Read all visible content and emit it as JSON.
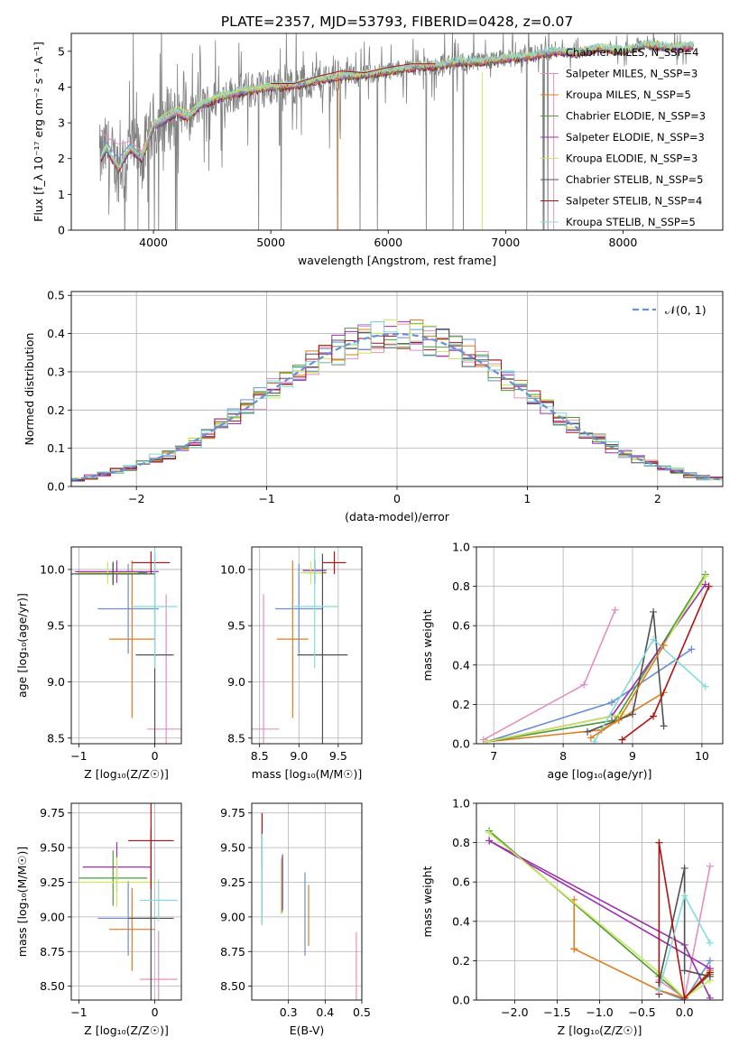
{
  "figure": {
    "title": "PLATE=2357, MJD=53793, FIBERID=0428, z=0.07"
  },
  "colors": {
    "c0": "#6a8fd6",
    "c1": "#e58fbf",
    "c2": "#e07b1e",
    "c3": "#4e9a3e",
    "c4": "#9b2fae",
    "c5": "#c9e85a",
    "c6": "#505050",
    "c7": "#b21111",
    "c8": "#82dcdc",
    "data": "#808080"
  },
  "chart_data": [
    {
      "id": "spectrum",
      "type": "line",
      "xlabel": "wavelength [Angstrom, rest frame]",
      "ylabel": "Flux [f_λ 10⁻¹⁷ erg cm⁻² s⁻¹ A⁻¹]",
      "xlim": [
        3300,
        8850
      ],
      "ylim": [
        0,
        5.5
      ],
      "xticks": [
        4000,
        5000,
        6000,
        7000,
        8000
      ],
      "yticks": [
        0,
        1,
        2,
        3,
        4,
        5
      ],
      "grid": false,
      "legend_position": "top-right",
      "legend": [
        {
          "label": "Chabrier MILES, N_SSP=4",
          "color": "c0"
        },
        {
          "label": "Salpeter MILES, N_SSP=3",
          "color": "c1"
        },
        {
          "label": "Kroupa MILES, N_SSP=5",
          "color": "c2"
        },
        {
          "label": "Chabrier ELODIE, N_SSP=3",
          "color": "c3"
        },
        {
          "label": "Salpeter ELODIE, N_SSP=3",
          "color": "c4"
        },
        {
          "label": "Kroupa ELODIE, N_SSP=3",
          "color": "c5"
        },
        {
          "label": "Chabrier STELIB, N_SSP=5",
          "color": "c6"
        },
        {
          "label": "Salpeter STELIB, N_SSP=4",
          "color": "c7"
        },
        {
          "label": "Kroupa STELIB, N_SSP=5",
          "color": "c8"
        }
      ],
      "model_continuum": {
        "x": [
          3550,
          3600,
          3700,
          3800,
          3900,
          4000,
          4100,
          4200,
          4300,
          4400,
          4600,
          4800,
          5000,
          5200,
          5400,
          5600,
          5800,
          6000,
          6200,
          6400,
          6600,
          6800,
          7000,
          7200,
          7400,
          7600,
          7800,
          8000,
          8200,
          8400,
          8600
        ],
        "y": [
          2.0,
          2.3,
          1.7,
          2.3,
          2.0,
          2.9,
          3.1,
          3.3,
          3.15,
          3.5,
          3.75,
          3.9,
          4.0,
          4.05,
          4.2,
          4.3,
          4.35,
          4.45,
          4.55,
          4.6,
          4.7,
          4.7,
          4.8,
          4.85,
          5.0,
          4.95,
          5.1,
          5.0,
          5.2,
          5.1,
          5.15
        ]
      },
      "model_variants": [
        {
          "color": "c0",
          "x": [
            3550,
            3600,
            3700,
            3800,
            3900,
            4000,
            4100,
            4200,
            4300
          ],
          "y": [
            2.5,
            2.45,
            2.0,
            2.4,
            2.1,
            2.9,
            3.05,
            3.3,
            3.1
          ]
        },
        {
          "color": "c1",
          "x": [
            3550,
            3600,
            3700,
            3800,
            3900,
            4000,
            4100,
            4200,
            4300
          ],
          "y": [
            2.8,
            2.6,
            2.4,
            2.5,
            2.2,
            2.95,
            3.1,
            3.3,
            3.1
          ]
        },
        {
          "color": "c5",
          "x": [
            3900,
            4000,
            4100,
            4200,
            4300,
            4400,
            4600,
            4800,
            5000
          ],
          "y": [
            2.1,
            3.0,
            3.25,
            3.45,
            3.3,
            3.6,
            3.8,
            3.95,
            4.05
          ]
        },
        {
          "color": "c7",
          "x": [
            5000,
            5200,
            5400,
            5600,
            5800,
            6000,
            6200,
            6400
          ],
          "y": [
            4.1,
            4.1,
            4.3,
            4.45,
            4.4,
            4.55,
            4.65,
            4.65
          ]
        }
      ]
    },
    {
      "id": "residuals",
      "type": "step",
      "xlabel": "(data-model)/error",
      "ylabel": "Normed distribution",
      "xlim": [
        -2.5,
        2.5
      ],
      "ylim": [
        0,
        0.51
      ],
      "xticks": [
        -2,
        -1,
        0,
        1,
        2
      ],
      "yticks": [
        0.0,
        0.1,
        0.2,
        0.3,
        0.4,
        0.5
      ],
      "grid": true,
      "legend_position": "top-right",
      "reference": {
        "label": "𝒩(0, 1)",
        "color": "c0",
        "mu": 0,
        "sigma": 1
      },
      "bin_edges_start": -2.5,
      "bin_width": 0.1,
      "bin_count": 50
    },
    {
      "id": "age-vs-Z",
      "type": "errorbar",
      "xlabel": "Z [log₁₀(Z/Z☉)]",
      "ylabel": "age  [log₁₀(age/yr)]",
      "xlim": [
        -1.1,
        0.35
      ],
      "ylim": [
        8.45,
        10.2
      ],
      "xticks": [
        -1,
        0
      ],
      "yticks": [
        8.5,
        9.0,
        9.5,
        10.0
      ],
      "grid": true,
      "points": [
        {
          "color": "c0",
          "x": -0.35,
          "xerr": 0.4,
          "y": 9.65,
          "yerr": 0.4
        },
        {
          "color": "c1",
          "x": 0.15,
          "xerr": 0.25,
          "y": 8.58,
          "yerr": 1.2
        },
        {
          "color": "c2",
          "x": -0.3,
          "xerr": 0.3,
          "y": 9.38,
          "yerr": 0.7
        },
        {
          "color": "c3",
          "x": -0.55,
          "xerr": 0.45,
          "y": 9.97,
          "yerr": 0.1
        },
        {
          "color": "c4",
          "x": -0.5,
          "xerr": 0.55,
          "y": 9.98,
          "yerr": 0.1
        },
        {
          "color": "c5",
          "x": -0.62,
          "xerr": 0.4,
          "y": 9.97,
          "yerr": 0.1
        },
        {
          "color": "c6",
          "x": 0.0,
          "xerr": 0.25,
          "y": 9.24,
          "yerr": 0.9
        },
        {
          "color": "c7",
          "x": -0.05,
          "xerr": 0.25,
          "y": 10.06,
          "yerr": 0.1
        },
        {
          "color": "c8",
          "x": 0.0,
          "xerr": 0.3,
          "y": 9.67,
          "yerr": 0.55
        },
        {
          "color": "c6",
          "x": -0.55,
          "xerr": 0.55,
          "y": 9.96,
          "yerr": 0.1
        }
      ]
    },
    {
      "id": "age-vs-mass",
      "type": "errorbar",
      "xlabel": "mass [log₁₀(M/M☉)]",
      "ylabel": "",
      "xlim": [
        8.4,
        9.8
      ],
      "ylim": [
        8.45,
        10.2
      ],
      "xticks": [
        8.5,
        9.0,
        9.5
      ],
      "yticks": [
        8.5,
        9.0,
        9.5,
        10.0
      ],
      "grid": true,
      "points": [
        {
          "color": "c0",
          "x": 9.0,
          "xerr": 0.3,
          "y": 9.65,
          "yerr": 0.4
        },
        {
          "color": "c1",
          "x": 8.55,
          "xerr": 0.2,
          "y": 8.58,
          "yerr": 1.2
        },
        {
          "color": "c2",
          "x": 8.92,
          "xerr": 0.2,
          "y": 9.38,
          "yerr": 0.7
        },
        {
          "color": "c3",
          "x": 9.2,
          "xerr": 0.15,
          "y": 9.97,
          "yerr": 0.1
        },
        {
          "color": "c4",
          "x": 9.2,
          "xerr": 0.15,
          "y": 9.99,
          "yerr": 0.1
        },
        {
          "color": "c5",
          "x": 9.15,
          "xerr": 0.15,
          "y": 9.97,
          "yerr": 0.1
        },
        {
          "color": "c6",
          "x": 9.3,
          "xerr": 0.32,
          "y": 9.24,
          "yerr": 0.9
        },
        {
          "color": "c7",
          "x": 9.45,
          "xerr": 0.15,
          "y": 10.06,
          "yerr": 0.1
        },
        {
          "color": "c8",
          "x": 9.2,
          "xerr": 0.3,
          "y": 9.67,
          "yerr": 0.55
        }
      ]
    },
    {
      "id": "weight-vs-age",
      "type": "line",
      "xlabel": "age  [log₁₀(age/yr)]",
      "ylabel": "mass weight",
      "xlim": [
        6.75,
        10.3
      ],
      "ylim": [
        0,
        1.0
      ],
      "xticks": [
        7,
        8,
        9,
        10
      ],
      "yticks": [
        0.0,
        0.2,
        0.4,
        0.6,
        0.8,
        1.0
      ],
      "grid": true,
      "series": [
        {
          "color": "c0",
          "x": [
            6.9,
            8.7,
            9.85
          ],
          "y": [
            0.01,
            0.21,
            0.48
          ]
        },
        {
          "color": "c1",
          "x": [
            6.85,
            8.3,
            8.75
          ],
          "y": [
            0.02,
            0.3,
            0.68
          ]
        },
        {
          "color": "c2",
          "x": [
            6.9,
            8.55,
            8.8,
            9.45
          ],
          "y": [
            0.01,
            0.07,
            0.12,
            0.26
          ]
        },
        {
          "color": "c3",
          "x": [
            6.9,
            8.75,
            10.05
          ],
          "y": [
            0.01,
            0.12,
            0.86
          ]
        },
        {
          "color": "c4",
          "x": [
            6.9,
            8.7,
            10.05
          ],
          "y": [
            0.01,
            0.14,
            0.81
          ]
        },
        {
          "color": "c5",
          "x": [
            6.9,
            8.85,
            10.05
          ],
          "y": [
            0.01,
            0.15,
            0.85
          ]
        },
        {
          "color": "c6",
          "x": [
            8.35,
            9.0,
            9.3,
            9.45
          ],
          "y": [
            0.06,
            0.15,
            0.67,
            0.09
          ]
        },
        {
          "color": "c7",
          "x": [
            8.85,
            9.3,
            10.1
          ],
          "y": [
            0.02,
            0.14,
            0.8
          ]
        },
        {
          "color": "c8",
          "x": [
            8.45,
            9.3,
            10.05
          ],
          "y": [
            0.01,
            0.53,
            0.29
          ]
        },
        {
          "color": "c2",
          "x": [
            8.4,
            8.8,
            9.45
          ],
          "y": [
            0.03,
            0.12,
            0.5
          ]
        }
      ]
    },
    {
      "id": "mass-vs-Z",
      "type": "errorbar",
      "xlabel": "Z [log₁₀(Z/Z☉)]",
      "ylabel": "mass [log₁₀(M/M☉)]",
      "xlim": [
        -1.1,
        0.35
      ],
      "ylim": [
        8.4,
        9.82
      ],
      "xticks": [
        -1,
        0
      ],
      "yticks": [
        8.5,
        8.75,
        9.0,
        9.25,
        9.5,
        9.75
      ],
      "grid": true,
      "points": [
        {
          "color": "c0",
          "x": -0.35,
          "xerr": 0.4,
          "y": 8.99,
          "yerr": 0.27
        },
        {
          "color": "c1",
          "x": 0.05,
          "xerr": 0.25,
          "y": 8.55,
          "yerr": 0.35
        },
        {
          "color": "c2",
          "x": -0.3,
          "xerr": 0.3,
          "y": 8.91,
          "yerr": 0.3
        },
        {
          "color": "c3",
          "x": -0.55,
          "xerr": 0.45,
          "y": 9.28,
          "yerr": 0.2
        },
        {
          "color": "c4",
          "x": -0.5,
          "xerr": 0.45,
          "y": 9.36,
          "yerr": 0.18
        },
        {
          "color": "c5",
          "x": -0.5,
          "xerr": 0.5,
          "y": 9.25,
          "yerr": 0.18
        },
        {
          "color": "c6",
          "x": -0.05,
          "xerr": 0.3,
          "y": 8.99,
          "yerr": 0.65
        },
        {
          "color": "c7",
          "x": -0.05,
          "xerr": 0.3,
          "y": 9.55,
          "yerr": 0.35
        },
        {
          "color": "c8",
          "x": 0.05,
          "xerr": 0.25,
          "y": 9.12,
          "yerr": 0.15
        }
      ]
    },
    {
      "id": "mass-vs-ebv",
      "type": "errorbar",
      "xlabel": "E(B-V)",
      "ylabel": "",
      "xlim": [
        0.2,
        0.5
      ],
      "ylim": [
        8.4,
        9.82
      ],
      "xticks": [
        0.3,
        0.4,
        0.5
      ],
      "yticks": [
        8.5,
        8.75,
        9.0,
        9.25,
        9.5,
        9.75
      ],
      "grid": true,
      "points": [
        {
          "color": "c0",
          "x": 0.345,
          "y": 9.02,
          "yerr": 0.3
        },
        {
          "color": "c1",
          "x": 0.485,
          "y": 8.61,
          "yerr": 0.28
        },
        {
          "color": "c2",
          "x": 0.355,
          "y": 9.01,
          "yerr": 0.22
        },
        {
          "color": "c3",
          "x": 0.283,
          "y": 9.23,
          "yerr": 0.2
        },
        {
          "color": "c4",
          "x": 0.284,
          "y": 9.25,
          "yerr": 0.2
        },
        {
          "color": "c5",
          "x": 0.28,
          "y": 9.22,
          "yerr": 0.2
        },
        {
          "color": "c6",
          "x": 0.228,
          "y": 9.28,
          "yerr": 0.33
        },
        {
          "color": "c7",
          "x": 0.228,
          "y": 9.55,
          "yerr": 0.2
        },
        {
          "color": "c8",
          "x": 0.228,
          "y": 9.27,
          "yerr": 0.33
        }
      ]
    },
    {
      "id": "weight-vs-Z",
      "type": "line",
      "xlabel": "Z [log₁₀(Z/Z☉)]",
      "ylabel": "mass weight",
      "xlim": [
        -2.45,
        0.45
      ],
      "ylim": [
        0,
        1.0
      ],
      "xticks": [
        -2.0,
        -1.5,
        -1.0,
        -0.5,
        0.0
      ],
      "yticks": [
        0.0,
        0.2,
        0.4,
        0.6,
        0.8,
        1.0
      ],
      "grid": true,
      "series": [
        {
          "color": "c0",
          "x": [
            -0.3,
            0.0,
            0.3
          ],
          "y": [
            0.05,
            0.0,
            0.2
          ]
        },
        {
          "color": "c1",
          "x": [
            -0.3,
            0.0,
            0.3
          ],
          "y": [
            0.1,
            0.01,
            0.68
          ]
        },
        {
          "color": "c2",
          "x": [
            -1.3,
            -0.3,
            0.0,
            0.3
          ],
          "y": [
            0.26,
            0.05,
            0.01,
            0.15
          ]
        },
        {
          "color": "c2",
          "x": [
            -1.3,
            -1.3
          ],
          "y": [
            0.26,
            0.51
          ]
        },
        {
          "color": "c3",
          "x": [
            -2.3,
            -0.3,
            0.0,
            0.3
          ],
          "y": [
            0.86,
            0.12,
            0.01,
            0.13
          ]
        },
        {
          "color": "c4",
          "x": [
            -2.3,
            0.0,
            0.3
          ],
          "y": [
            0.81,
            0.28,
            0.01
          ]
        },
        {
          "color": "c4",
          "x": [
            -2.3,
            0.3
          ],
          "y": [
            0.81,
            0.16
          ]
        },
        {
          "color": "c5",
          "x": [
            -2.3,
            -0.3,
            0.0,
            0.3
          ],
          "y": [
            0.85,
            0.14,
            0.01,
            0.1
          ]
        },
        {
          "color": "c6",
          "x": [
            -0.3,
            0.0,
            0.0,
            0.3
          ],
          "y": [
            0.09,
            0.67,
            0.15,
            0.12
          ]
        },
        {
          "color": "c7",
          "x": [
            -0.3,
            -0.3,
            0.0,
            0.3
          ],
          "y": [
            0.03,
            0.8,
            0.01,
            0.14
          ]
        },
        {
          "color": "c8",
          "x": [
            -0.3,
            0.0,
            0.3
          ],
          "y": [
            0.05,
            0.53,
            0.29
          ]
        }
      ]
    }
  ]
}
